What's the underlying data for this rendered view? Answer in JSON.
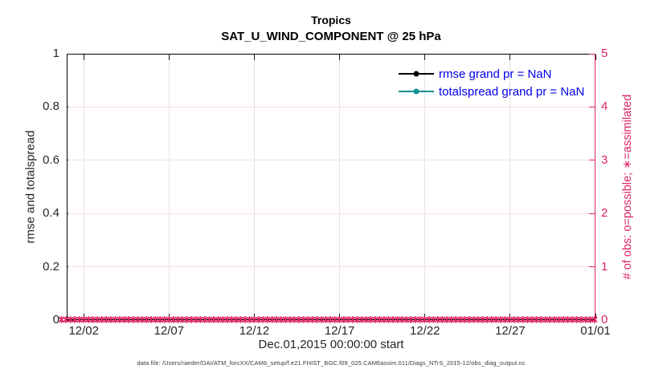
{
  "figure": {
    "caption": "data file: /Users/raeder/DAI/ATM_forcXX/CAM6_setup/f.e21.FHIST_BGC.f09_025.CAM6assim.011/Diags_NTrS_2015-12/obs_diag_output.nc"
  },
  "chart_data": {
    "type": "line",
    "title": "Tropics",
    "subtitle": "SAT_U_WIND_COMPONENT @ 25 hPa",
    "xlabel": "Dec.01,2015 00:00:00 start",
    "ylabel_left": "rmse and totalspread",
    "ylabel_right": "# of obs: o=possible; ∗=assimilated",
    "x_range_days": [
      0,
      31
    ],
    "x_tick_days": [
      1,
      6,
      11,
      16,
      21,
      26,
      31
    ],
    "x_tick_labels": [
      "12/02",
      "12/07",
      "12/12",
      "12/17",
      "12/22",
      "12/27",
      "01/01"
    ],
    "ylim_left": [
      0,
      1
    ],
    "y_tick_values_left": [
      0,
      0.2,
      0.4,
      0.6,
      0.8,
      1
    ],
    "y_tick_labels_left": [
      "0",
      "0.2",
      "0.4",
      "0.6",
      "0.8",
      "1"
    ],
    "ylim_right": [
      0,
      5
    ],
    "y_tick_values_right": [
      0,
      1,
      2,
      3,
      4,
      5
    ],
    "y_tick_labels_right": [
      "0",
      "1",
      "2",
      "3",
      "4",
      "5"
    ],
    "grid": true,
    "legend": {
      "position": "top-right-inside",
      "box": false,
      "entries": [
        {
          "label": "rmse grand pr = NaN",
          "color": "#000000",
          "marker": "filled-circle"
        },
        {
          "label": "totalspread grand pr = NaN",
          "color": "#0E8F8F",
          "marker": "filled-circle"
        }
      ]
    },
    "series": [
      {
        "name": "rmse",
        "values": "NaN",
        "plotted": false
      },
      {
        "name": "totalspread",
        "values": "NaN",
        "plotted": false
      }
    ],
    "obs_counts": {
      "assimilated_marker": "*",
      "assimilated_value_right_axis": 0,
      "approx_marker_count": 120,
      "marker_color": "#DE2368"
    }
  },
  "colors": {
    "right_axis_pink": "#DE2368",
    "teal_series": "#0E8F8F",
    "legend_text_blue": "#0000EE",
    "axis_text": "#262626",
    "frame_black": "#000000",
    "grid_vertical_gray": "#E4E4E4",
    "grid_horizontal_pink": "#F8DCE7"
  }
}
